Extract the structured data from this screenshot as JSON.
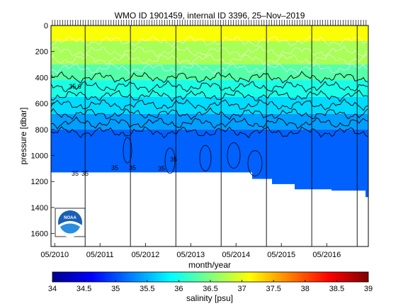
{
  "chart_data": {
    "type": "heatmap",
    "title": "WMO ID 1901459, internal ID 3396, 25–Nov–2019",
    "xlabel": "month/year",
    "ylabel": "pressure [dbar]",
    "colorbar_label": "salinity [psu]",
    "x_tick_labels": [
      "05/2010",
      "05/2011",
      "05/2012",
      "05/2013",
      "05/2014",
      "05/2015",
      "05/2016"
    ],
    "y_tick_labels": [
      "0",
      "200",
      "400",
      "600",
      "800",
      "1000",
      "1200",
      "1400",
      "1600"
    ],
    "y_ticks": [
      0,
      200,
      400,
      600,
      800,
      1000,
      1200,
      1400,
      1600
    ],
    "ylim": [
      0,
      1700
    ],
    "y_reversed": true,
    "colorbar_ticks": [
      "34",
      "34.5",
      "35",
      "35.5",
      "36",
      "36.5",
      "37",
      "37.5",
      "38",
      "38.5",
      "39"
    ],
    "clim": [
      34,
      39
    ],
    "colormap": "jet",
    "contour_labels": [
      "35.6",
      "35",
      "35",
      "35",
      "35",
      "35",
      "35"
    ],
    "year_separators": [
      "2011-01",
      "2012-01",
      "2013-01",
      "2014-01",
      "2015-01",
      "2016-01",
      "2017-01"
    ],
    "bottom_depth_profile": [
      {
        "date": "2010-04",
        "pressure": 1130
      },
      {
        "date": "2013-05",
        "pressure": 1130
      },
      {
        "date": "2014-03",
        "pressure": 1130
      },
      {
        "date": "2014-09",
        "pressure": 1180
      },
      {
        "date": "2015-02",
        "pressure": 1220
      },
      {
        "date": "2015-08",
        "pressure": 1260
      },
      {
        "date": "2016-06",
        "pressure": 1270
      },
      {
        "date": "2017-03",
        "pressure": 1320
      }
    ],
    "salinity_layers": [
      {
        "pressure_top": 0,
        "pressure_bottom": 120,
        "salinity": 37.1
      },
      {
        "pressure_top": 120,
        "pressure_bottom": 300,
        "salinity": 36.7
      },
      {
        "pressure_top": 300,
        "pressure_bottom": 420,
        "salinity": 36.3
      },
      {
        "pressure_top": 420,
        "pressure_bottom": 550,
        "salinity": 36.0
      },
      {
        "pressure_top": 550,
        "pressure_bottom": 680,
        "salinity": 35.7
      },
      {
        "pressure_top": 680,
        "pressure_bottom": 800,
        "salinity": 35.4
      },
      {
        "pressure_top": 800,
        "pressure_bottom": 1320,
        "salinity": 35.1
      }
    ]
  },
  "logo": {
    "text": "NOAA"
  }
}
